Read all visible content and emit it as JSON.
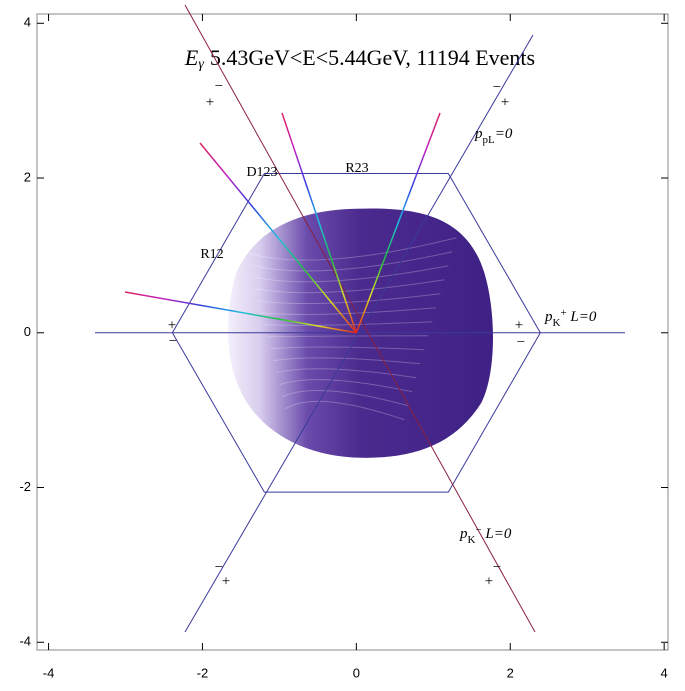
{
  "chart_data": {
    "type": "density",
    "title_symbol": "E",
    "title_symbol_sub": "γ",
    "title": "5.43GeV<E<5.44GeV, 11194 Events",
    "xlim": [
      -4.15,
      4.05
    ],
    "ylim": [
      -4.1,
      4.12
    ],
    "xticks": [
      -4,
      -2,
      0,
      2,
      4
    ],
    "yticks": [
      -4,
      -2,
      0,
      2,
      4
    ],
    "region_labels": [
      "R12",
      "D123",
      "R23"
    ],
    "line_labels": [
      {
        "symbol": "p",
        "sub": "pL",
        "sup": "",
        "rest": "=0"
      },
      {
        "symbol": "p",
        "sub": "K",
        "sup": "+",
        "rest": " L=0"
      },
      {
        "symbol": "p",
        "sub": "K",
        "sup": "−",
        "rest": " L=0"
      }
    ],
    "signs": [
      "−",
      "+",
      "−",
      "+",
      "+",
      "−",
      "+",
      "−",
      "−",
      "+",
      "−",
      "+"
    ]
  }
}
